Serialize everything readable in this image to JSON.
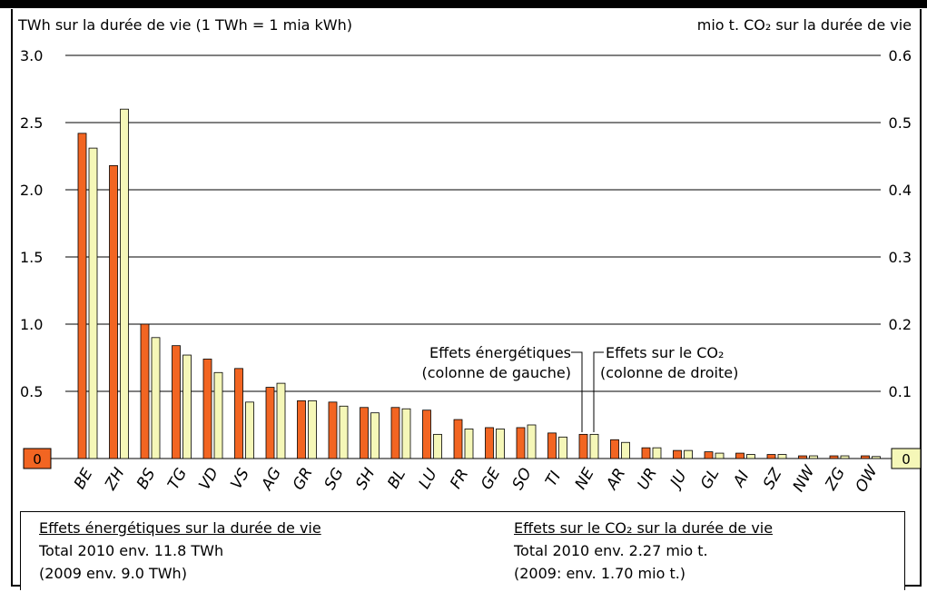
{
  "chart_data": {
    "type": "bar",
    "left_axis_title": "TWh sur la durée de vie (1 TWh = 1 mia kWh)",
    "right_axis_title": "mio t. CO₂ sur la durée de vie",
    "left_ylim": [
      0,
      3.0
    ],
    "right_ylim": [
      0,
      0.6
    ],
    "left_ticks": [
      "0.5",
      "1.0",
      "1.5",
      "2.0",
      "2.5",
      "3.0"
    ],
    "right_ticks": [
      "0.1",
      "0.2",
      "0.3",
      "0.4",
      "0.5",
      "0.6"
    ],
    "zero_left": "0",
    "zero_right": "0",
    "grid": true,
    "categories": [
      "BE",
      "ZH",
      "BS",
      "TG",
      "VD",
      "VS",
      "AG",
      "GR",
      "SG",
      "SH",
      "BL",
      "LU",
      "FR",
      "GE",
      "SO",
      "TI",
      "NE",
      "AR",
      "UR",
      "JU",
      "GL",
      "AI",
      "SZ",
      "NW",
      "ZG",
      "OW"
    ],
    "series": [
      {
        "name": "Effets énergétiques (colonne de gauche)",
        "axis": "left",
        "color": "#f26522",
        "values": [
          2.42,
          2.18,
          1.0,
          0.84,
          0.74,
          0.67,
          0.53,
          0.43,
          0.42,
          0.38,
          0.38,
          0.36,
          0.29,
          0.23,
          0.23,
          0.19,
          0.18,
          0.14,
          0.08,
          0.06,
          0.05,
          0.04,
          0.03,
          0.02,
          0.02,
          0.02
        ]
      },
      {
        "name": "Effets sur le CO₂ (colonne de droite)",
        "axis": "right",
        "color": "#f5f7b8",
        "values": [
          0.462,
          0.52,
          0.18,
          0.154,
          0.128,
          0.084,
          0.112,
          0.086,
          0.078,
          0.068,
          0.074,
          0.036,
          0.044,
          0.044,
          0.05,
          0.032,
          0.036,
          0.024,
          0.016,
          0.012,
          0.008,
          0.006,
          0.006,
          0.004,
          0.004,
          0.003
        ]
      }
    ],
    "annotations": {
      "left_label_line1": "Effets énergétiques",
      "left_label_line2": "(colonne de gauche)",
      "right_label_line1": "Effets sur le CO₂",
      "right_label_line2": "(colonne de droite)"
    }
  },
  "legend_box": {
    "energy_title": "Effets énergétiques sur la durée de vie",
    "energy_total": "Total 2010 env. 11.8 TWh",
    "energy_prev": "(2009 env. 9.0 TWh)",
    "co2_title": "Effets sur le CO₂ sur la durée de vie",
    "co2_total": "Total 2010 env. 2.27 mio t.",
    "co2_prev": "(2009: env. 1.70 mio t.)"
  }
}
